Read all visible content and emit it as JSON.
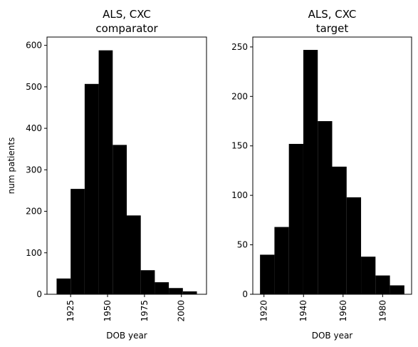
{
  "chart_data": [
    {
      "type": "bar",
      "title": "ALS, CXC\ncomparator",
      "xlabel": "DOB year",
      "ylabel": "num patients",
      "bar_color": "#000000",
      "bin_edges": [
        1915.5,
        1925.0,
        1934.5,
        1944.0,
        1953.5,
        1963.0,
        1972.5,
        1982.0,
        1991.5,
        2001.0,
        2010.5
      ],
      "values": [
        38,
        254,
        507,
        588,
        360,
        190,
        58,
        29,
        15,
        7
      ],
      "xlim": [
        1909,
        2017
      ],
      "ylim": [
        0,
        620
      ],
      "xticks": [
        1925,
        1950,
        1975,
        2000
      ],
      "xtick_labels": [
        "1925",
        "1950",
        "1975",
        "2000"
      ],
      "yticks": [
        0,
        100,
        200,
        300,
        400,
        500,
        600
      ],
      "ytick_labels": [
        "0",
        "100",
        "200",
        "300",
        "400",
        "500",
        "600"
      ],
      "grid": false
    },
    {
      "type": "bar",
      "title": "ALS, CXC\ntarget",
      "xlabel": "DOB year",
      "ylabel": "",
      "bar_color": "#000000",
      "bin_edges": [
        1918.0,
        1925.3,
        1932.6,
        1939.9,
        1947.2,
        1954.5,
        1961.8,
        1969.1,
        1976.4,
        1983.7,
        1991.0
      ],
      "values": [
        40,
        68,
        152,
        247,
        175,
        129,
        98,
        38,
        19,
        9
      ],
      "xlim": [
        1914.35,
        1994.65
      ],
      "ylim": [
        0,
        260
      ],
      "xticks": [
        1920,
        1940,
        1960,
        1980
      ],
      "xtick_labels": [
        "1920",
        "1940",
        "1960",
        "1980"
      ],
      "yticks": [
        0,
        50,
        100,
        150,
        200,
        250
      ],
      "ytick_labels": [
        "0",
        "50",
        "100",
        "150",
        "200",
        "250"
      ],
      "grid": false
    }
  ]
}
